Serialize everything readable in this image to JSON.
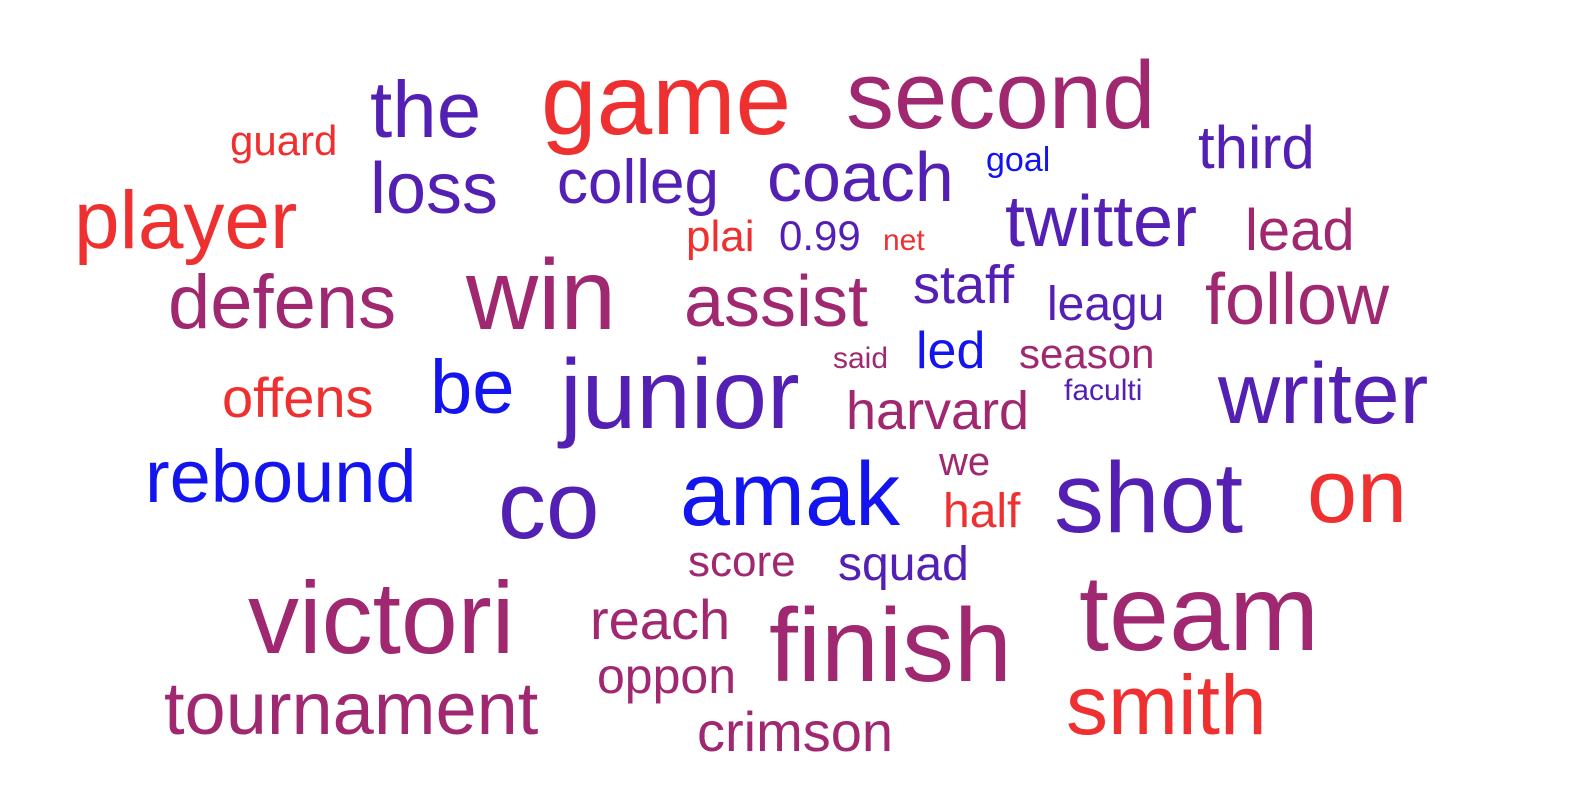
{
  "colors": {
    "red": "#ee3030",
    "blue": "#1414ee",
    "purple": "#5420b4",
    "magenta": "#a02870"
  },
  "words": [
    {
      "text": "game",
      "color": "#ee3030"
    },
    {
      "text": "second",
      "color": "#a02870"
    },
    {
      "text": "the",
      "color": "#5420b4"
    },
    {
      "text": "guard",
      "color": "#ee3030"
    },
    {
      "text": "third",
      "color": "#5420b4"
    },
    {
      "text": "loss",
      "color": "#5420b4"
    },
    {
      "text": "colleg",
      "color": "#5420b4"
    },
    {
      "text": "coach",
      "color": "#5420b4"
    },
    {
      "text": "goal",
      "color": "#1414ee"
    },
    {
      "text": "player",
      "color": "#ee3030"
    },
    {
      "text": "twitter",
      "color": "#5420b4"
    },
    {
      "text": "plai",
      "color": "#ee3030"
    },
    {
      "text": "0.99",
      "color": "#5420b4"
    },
    {
      "text": "net",
      "color": "#ee3030"
    },
    {
      "text": "lead",
      "color": "#a02870"
    },
    {
      "text": "win",
      "color": "#a02870"
    },
    {
      "text": "defens",
      "color": "#a02870"
    },
    {
      "text": "assist",
      "color": "#a02870"
    },
    {
      "text": "staff",
      "color": "#5420b4"
    },
    {
      "text": "leagu",
      "color": "#5420b4"
    },
    {
      "text": "follow",
      "color": "#a02870"
    },
    {
      "text": "said",
      "color": "#a02870"
    },
    {
      "text": "led",
      "color": "#1414ee"
    },
    {
      "text": "season",
      "color": "#a02870"
    },
    {
      "text": "junior",
      "color": "#5420b4"
    },
    {
      "text": "offens",
      "color": "#ee3030"
    },
    {
      "text": "be",
      "color": "#1414ee"
    },
    {
      "text": "faculti",
      "color": "#5420b4"
    },
    {
      "text": "writer",
      "color": "#5420b4"
    },
    {
      "text": "harvard",
      "color": "#a02870"
    },
    {
      "text": "rebound",
      "color": "#1414ee"
    },
    {
      "text": "we",
      "color": "#a02870"
    },
    {
      "text": "co",
      "color": "#5420b4"
    },
    {
      "text": "amak",
      "color": "#1414ee"
    },
    {
      "text": "half",
      "color": "#ee3030"
    },
    {
      "text": "shot",
      "color": "#5420b4"
    },
    {
      "text": "on",
      "color": "#ee3030"
    },
    {
      "text": "score",
      "color": "#a02870"
    },
    {
      "text": "squad",
      "color": "#5420b4"
    },
    {
      "text": "victori",
      "color": "#a02870"
    },
    {
      "text": "team",
      "color": "#a02870"
    },
    {
      "text": "reach",
      "color": "#a02870"
    },
    {
      "text": "finish",
      "color": "#a02870"
    },
    {
      "text": "oppon",
      "color": "#a02870"
    },
    {
      "text": "tournament",
      "color": "#a02870"
    },
    {
      "text": "smith",
      "color": "#ee3030"
    },
    {
      "text": "crimson",
      "color": "#a02870"
    }
  ]
}
